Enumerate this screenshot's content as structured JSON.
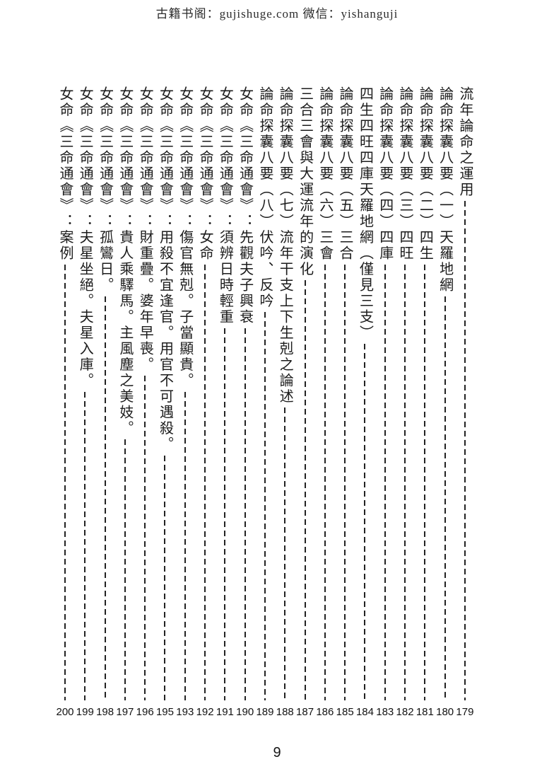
{
  "header": {
    "text": "古籍书阁：gujishuge.com 微信：yishanguji"
  },
  "toc": {
    "entries": [
      {
        "title": "流年論命之運用",
        "page": "179"
      },
      {
        "title": "論命探囊八要（一）天羅地網",
        "page": "180"
      },
      {
        "title": "論命探囊八要（二）四生",
        "page": "181"
      },
      {
        "title": "論命探囊八要（三）四旺",
        "page": "182"
      },
      {
        "title": "論命探囊八要（四）四庫",
        "page": "183"
      },
      {
        "title": "四生四旺四庫天羅地網（僅見三支）",
        "page": "184"
      },
      {
        "title": "論命探囊八要（五）三合",
        "page": "185"
      },
      {
        "title": "論命探囊八要（六）三會",
        "page": "186"
      },
      {
        "title": "三合三會與大運流年的演化",
        "page": "187"
      },
      {
        "title": "論命探囊八要（七）流年干支上下生剋之論述",
        "page": "188"
      },
      {
        "title": "論命探囊八要（八）伏吟、反吟",
        "page": "189"
      },
      {
        "title": "女命《三命通會》：先觀夫子興衰",
        "page": "190"
      },
      {
        "title": "女命《三命通會》：須辨日時輕重",
        "page": "191"
      },
      {
        "title": "女命《三命通會》：女命",
        "page": "192"
      },
      {
        "title": "女命《三命通會》：傷官無剋。子當顯貴。",
        "page": "193"
      },
      {
        "title": "女命《三命通會》：用殺不宜逢官。用官不可遇殺。",
        "page": "195"
      },
      {
        "title": "女命《三命通會》：財重疊。婆年早喪。",
        "page": "196"
      },
      {
        "title": "女命《三命通會》：貴人乘驛馬。主風塵之美妓。",
        "page": "197"
      },
      {
        "title": "女命《三命通會》：孤鸞日。",
        "page": "198"
      },
      {
        "title": "女命《三命通會》：夫星坐絕。夫星入庫。",
        "page": "199"
      },
      {
        "title": "女命《三命通會》：案例",
        "page": "200"
      }
    ]
  },
  "footer": {
    "page_number": "9"
  },
  "colors": {
    "ink": "#1c1c1c",
    "paper": "#ffffff"
  }
}
